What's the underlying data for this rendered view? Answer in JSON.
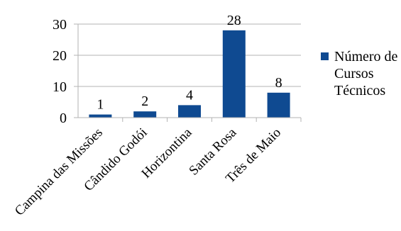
{
  "chart_data": {
    "type": "bar",
    "title": "",
    "xlabel": "",
    "ylabel": "",
    "categories": [
      "Campina das Missões",
      "Cândido Godói",
      "Horizontina",
      "Santa Rosa",
      "Três de Maio"
    ],
    "series": [
      {
        "name": "Número de Cursos Técnicos",
        "values": [
          1,
          2,
          4,
          28,
          8
        ]
      }
    ],
    "ylim": [
      0,
      30
    ],
    "yticks": [
      "0",
      "10",
      "20",
      "30"
    ],
    "grid": "horizontal",
    "legend_position": "right",
    "legend_lines": [
      "Número de",
      "Cursos",
      "Técnicos"
    ],
    "bar_color": "#0f4a91",
    "grid_color": "#b3b3b3"
  }
}
